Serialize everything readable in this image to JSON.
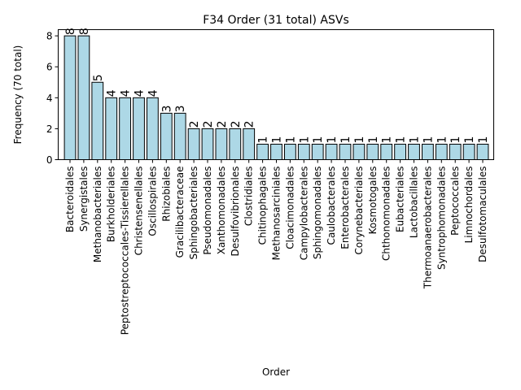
{
  "chart_data": {
    "type": "bar",
    "title": "F34 Order (31 total) ASVs",
    "xlabel": "Order",
    "ylabel": "Frequency (70 total)",
    "ylim": [
      0,
      8.4
    ],
    "yticks": [
      0,
      2,
      4,
      6,
      8
    ],
    "bar_color": "#add8e6",
    "bar_edge_color": "#000000",
    "grid": false,
    "legend": "none",
    "categories": [
      "Bacteroidales",
      "Synergistales",
      "Methanobacteriales",
      "Burkholderiales",
      "Peptostreptococcales-Tissierellales",
      "Christensenellales",
      "Oscillospirales",
      "Rhizobiales",
      "Gracilibacteraceae",
      "Sphingobacteriales",
      "Pseudomonadales",
      "Xanthomonadales",
      "Desulfovibrionales",
      "Clostridiales",
      "Chitinophagales",
      "Methanosarciniales",
      "Cloacimonadales",
      "Campylobacterales",
      "Sphingomonadales",
      "Caulobacterales",
      "Enterobacterales",
      "Corynebacteriales",
      "Kosmotogales",
      "Chthonomonadales",
      "Eubacteriales",
      "Lactobacillales",
      "Thermoanaerobacterales",
      "Syntrophomonadales",
      "Peptococcales",
      "Limnochordales",
      "Desulfotomaculales"
    ],
    "values": [
      8,
      8,
      5,
      4,
      4,
      4,
      4,
      3,
      3,
      2,
      2,
      2,
      2,
      2,
      1,
      1,
      1,
      1,
      1,
      1,
      1,
      1,
      1,
      1,
      1,
      1,
      1,
      1,
      1,
      1,
      1
    ]
  }
}
